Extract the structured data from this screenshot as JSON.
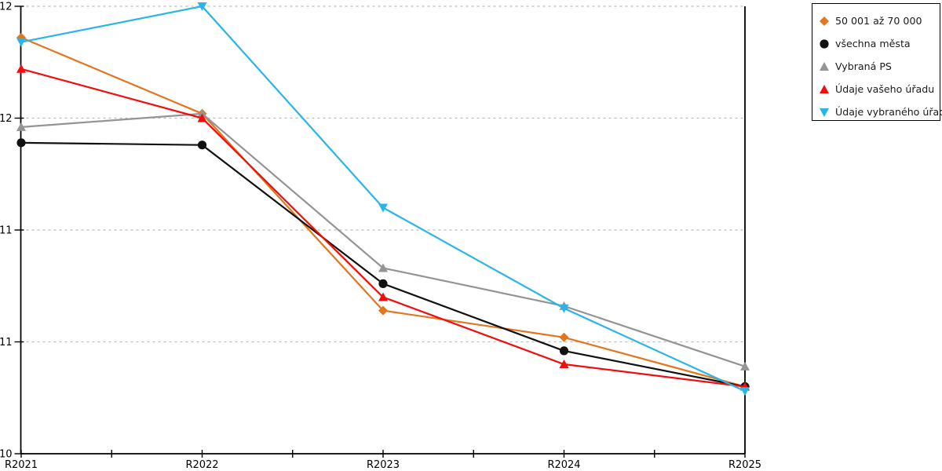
{
  "chart_data": {
    "type": "line",
    "categories": [
      "R2021",
      "R2022",
      "R2023",
      "R2024",
      "R2025"
    ],
    "series": [
      {
        "name": "50 001 až 70 000",
        "marker": "diamond",
        "color": "#e2751d",
        "values": [
          11.86,
          11.52,
          10.64,
          10.52,
          10.3
        ]
      },
      {
        "name": "všechna města",
        "marker": "circle",
        "color": "#111111",
        "values": [
          11.39,
          11.38,
          10.76,
          10.46,
          10.3
        ]
      },
      {
        "name": "Vybraná PS",
        "marker": "triangle-up",
        "color": "#949494",
        "values": [
          11.46,
          11.52,
          10.83,
          10.66,
          10.39
        ]
      },
      {
        "name": "Údaje vašeho úřadu",
        "marker": "triangle-up",
        "color": "#f20d0d",
        "values": [
          11.72,
          11.5,
          10.7,
          10.4,
          10.3
        ]
      },
      {
        "name": "Údaje vybraného úřadu",
        "marker": "triangle-down",
        "color": "#29b5e8",
        "values": [
          11.84,
          12.0,
          11.1,
          10.65,
          10.28
        ]
      }
    ],
    "ylim": [
      10,
      12
    ],
    "yticks": [
      {
        "value": 12.0,
        "label": "12"
      },
      {
        "value": 11.5,
        "label": "12"
      },
      {
        "value": 11.0,
        "label": "11"
      },
      {
        "value": 10.5,
        "label": "11"
      },
      {
        "value": 10.0,
        "label": "10"
      }
    ],
    "title": "",
    "xlabel": "",
    "ylabel": "",
    "grid": "dotted-horizontal",
    "legend_position": "top-right",
    "colors": {
      "axis": "#000000",
      "gridline": "#bbbbbb",
      "background": "#ffffff"
    }
  }
}
